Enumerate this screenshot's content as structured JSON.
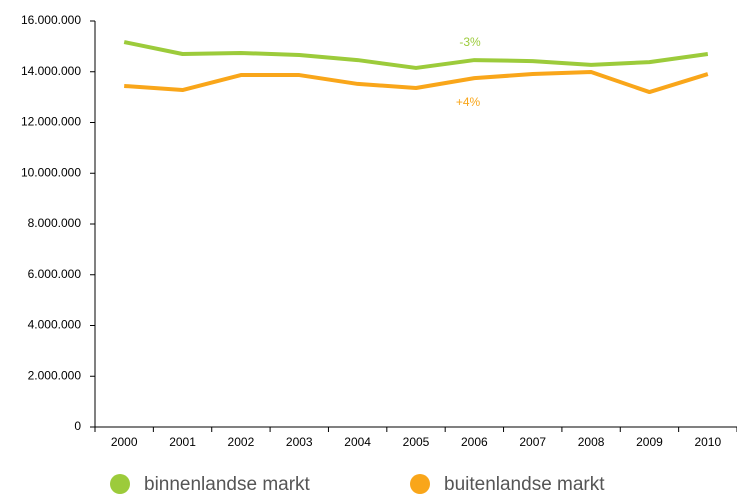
{
  "chart_data": {
    "type": "line",
    "categories": [
      "2000",
      "2001",
      "2002",
      "2003",
      "2004",
      "2005",
      "2006",
      "2007",
      "2008",
      "2009",
      "2010"
    ],
    "series": [
      {
        "name": "binnenlandse markt",
        "color": "#9ccb3b",
        "values": [
          15170000,
          14700000,
          14740000,
          14660000,
          14460000,
          14150000,
          14460000,
          14420000,
          14270000,
          14380000,
          14700000
        ]
      },
      {
        "name": "buitenlandse markt",
        "color": "#f9a61a",
        "values": [
          13440000,
          13280000,
          13870000,
          13870000,
          13520000,
          13360000,
          13750000,
          13910000,
          13990000,
          13200000,
          13910000
        ]
      }
    ],
    "annotations": [
      {
        "text": "-3%",
        "color": "#9ccb3b"
      },
      {
        "text": "+4%",
        "color": "#f9a61a"
      }
    ],
    "ylim": [
      0,
      16000000
    ],
    "yticks": [
      0,
      {
        "value": 2000000,
        "label": "2.000.000"
      },
      {
        "value": 4000000,
        "label": "4.000.000"
      },
      {
        "value": 6000000,
        "label": "6.000.000"
      },
      {
        "value": 8000000,
        "label": "8.000.000"
      },
      {
        "value": 10000000,
        "label": "10.000.000"
      },
      {
        "value": 12000000,
        "label": "12.000.000"
      },
      {
        "value": 14000000,
        "label": "14.000.000"
      },
      {
        "value": 16000000,
        "label": "16.000.000"
      }
    ],
    "grid": false
  }
}
